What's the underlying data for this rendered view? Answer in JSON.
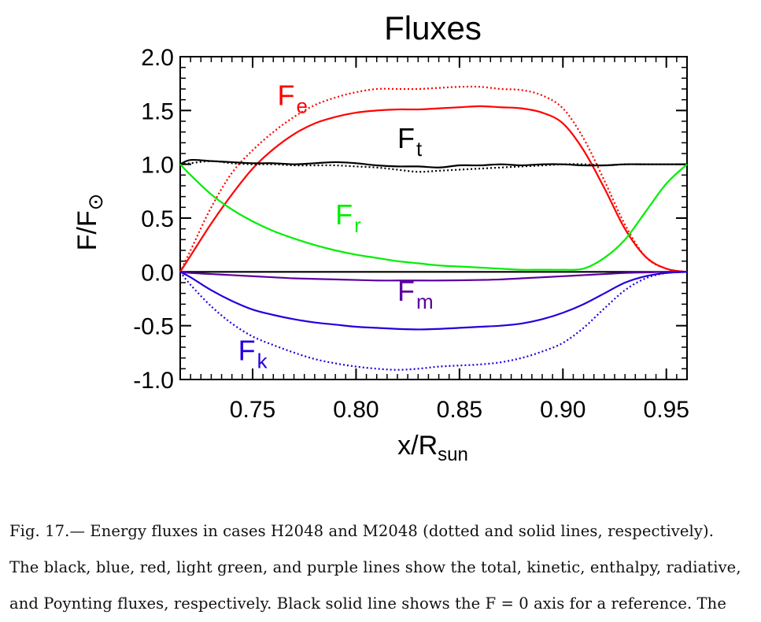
{
  "chart_data": {
    "type": "line",
    "title": "Fluxes",
    "ylabel": {
      "main": "F/F",
      "sub": "⊙"
    },
    "xlabel": {
      "main": "x/R",
      "sub": "sun"
    },
    "xlim": [
      0.715,
      0.96
    ],
    "ylim": [
      -1.0,
      2.0
    ],
    "xticks": [
      0.75,
      0.8,
      0.85,
      0.9,
      0.95
    ],
    "xtick_labels": [
      "0.75",
      "0.80",
      "0.85",
      "0.90",
      "0.95"
    ],
    "yticks": [
      2.0,
      1.5,
      1.0,
      0.5,
      0.0,
      -0.5,
      -1.0
    ],
    "ytick_labels": [
      "2.0",
      "1.5",
      "1.0",
      "0.5",
      "0.0",
      "-0.5",
      "-1.0"
    ],
    "grid": false,
    "series": [
      {
        "color": "#000000",
        "style": "solid",
        "x": [
          0.715,
          0.96
        ],
        "y": [
          0.0,
          0.0
        ]
      },
      {
        "color": "#ff0000",
        "style": "solid",
        "x": [
          0.715,
          0.72,
          0.73,
          0.74,
          0.75,
          0.76,
          0.77,
          0.78,
          0.79,
          0.8,
          0.81,
          0.82,
          0.83,
          0.84,
          0.85,
          0.86,
          0.87,
          0.88,
          0.89,
          0.9,
          0.91,
          0.92,
          0.93,
          0.94,
          0.95,
          0.96
        ],
        "y": [
          0.0,
          0.15,
          0.45,
          0.72,
          0.96,
          1.14,
          1.28,
          1.38,
          1.44,
          1.48,
          1.5,
          1.51,
          1.51,
          1.52,
          1.53,
          1.54,
          1.53,
          1.52,
          1.48,
          1.38,
          1.13,
          0.78,
          0.4,
          0.14,
          0.03,
          0.0
        ]
      },
      {
        "color": "#ff0000",
        "style": "dotted",
        "x": [
          0.715,
          0.72,
          0.73,
          0.74,
          0.75,
          0.76,
          0.77,
          0.78,
          0.79,
          0.8,
          0.81,
          0.82,
          0.83,
          0.84,
          0.85,
          0.86,
          0.87,
          0.88,
          0.89,
          0.9,
          0.91,
          0.92,
          0.93,
          0.94,
          0.95,
          0.96
        ],
        "y": [
          0.0,
          0.2,
          0.6,
          0.92,
          1.13,
          1.3,
          1.44,
          1.55,
          1.62,
          1.67,
          1.7,
          1.7,
          1.7,
          1.71,
          1.72,
          1.72,
          1.7,
          1.69,
          1.64,
          1.52,
          1.24,
          0.85,
          0.44,
          0.14,
          0.03,
          0.0
        ]
      },
      {
        "color": "#000000",
        "style": "solid",
        "x": [
          0.715,
          0.72,
          0.73,
          0.74,
          0.75,
          0.76,
          0.77,
          0.78,
          0.79,
          0.8,
          0.81,
          0.82,
          0.83,
          0.84,
          0.85,
          0.86,
          0.87,
          0.88,
          0.89,
          0.9,
          0.91,
          0.92,
          0.93,
          0.94,
          0.95,
          0.96
        ],
        "y": [
          1.0,
          1.04,
          1.03,
          1.02,
          1.01,
          1.01,
          1.0,
          1.01,
          1.02,
          1.01,
          0.99,
          0.98,
          0.98,
          0.97,
          0.99,
          0.99,
          1.0,
          0.99,
          1.0,
          1.0,
          0.99,
          0.99,
          1.0,
          1.0,
          1.0,
          1.0
        ]
      },
      {
        "color": "#000000",
        "style": "dotted",
        "x": [
          0.715,
          0.72,
          0.73,
          0.74,
          0.75,
          0.76,
          0.77,
          0.78,
          0.79,
          0.8,
          0.81,
          0.82,
          0.83,
          0.84,
          0.85,
          0.86,
          0.87,
          0.88,
          0.89,
          0.9,
          0.91,
          0.92,
          0.93,
          0.94,
          0.95,
          0.96
        ],
        "y": [
          1.0,
          1.01,
          1.03,
          1.01,
          1.0,
          1.0,
          0.99,
          0.99,
          0.99,
          0.98,
          0.97,
          0.95,
          0.93,
          0.94,
          0.95,
          0.96,
          0.97,
          0.98,
          0.99,
          1.0,
          1.0,
          0.99,
          1.0,
          1.0,
          1.0,
          1.0
        ]
      },
      {
        "color": "#00ee00",
        "style": "solid",
        "x": [
          0.715,
          0.72,
          0.73,
          0.74,
          0.75,
          0.76,
          0.77,
          0.78,
          0.79,
          0.8,
          0.81,
          0.82,
          0.83,
          0.84,
          0.85,
          0.86,
          0.87,
          0.88,
          0.89,
          0.9,
          0.91,
          0.92,
          0.93,
          0.94,
          0.95,
          0.96
        ],
        "y": [
          1.0,
          0.9,
          0.72,
          0.58,
          0.47,
          0.38,
          0.31,
          0.25,
          0.2,
          0.16,
          0.13,
          0.1,
          0.08,
          0.06,
          0.05,
          0.04,
          0.03,
          0.02,
          0.02,
          0.02,
          0.03,
          0.13,
          0.3,
          0.56,
          0.82,
          1.0
        ]
      },
      {
        "color": "#5a00a0",
        "style": "solid",
        "x": [
          0.715,
          0.72,
          0.73,
          0.74,
          0.75,
          0.76,
          0.77,
          0.78,
          0.79,
          0.8,
          0.81,
          0.82,
          0.83,
          0.84,
          0.85,
          0.86,
          0.87,
          0.88,
          0.89,
          0.9,
          0.91,
          0.92,
          0.93,
          0.94,
          0.95,
          0.96
        ],
        "y": [
          0.0,
          -0.01,
          -0.02,
          -0.03,
          -0.04,
          -0.05,
          -0.06,
          -0.065,
          -0.07,
          -0.075,
          -0.08,
          -0.08,
          -0.08,
          -0.08,
          -0.078,
          -0.075,
          -0.07,
          -0.06,
          -0.05,
          -0.04,
          -0.03,
          -0.02,
          -0.01,
          -0.005,
          0.0,
          0.0
        ]
      },
      {
        "color": "#2200dd",
        "style": "solid",
        "x": [
          0.715,
          0.72,
          0.73,
          0.74,
          0.75,
          0.76,
          0.77,
          0.78,
          0.79,
          0.8,
          0.81,
          0.82,
          0.83,
          0.84,
          0.85,
          0.86,
          0.87,
          0.88,
          0.89,
          0.9,
          0.91,
          0.92,
          0.93,
          0.94,
          0.95,
          0.96
        ],
        "y": [
          0.0,
          -0.05,
          -0.17,
          -0.27,
          -0.35,
          -0.4,
          -0.44,
          -0.47,
          -0.49,
          -0.51,
          -0.52,
          -0.53,
          -0.535,
          -0.53,
          -0.52,
          -0.51,
          -0.5,
          -0.48,
          -0.44,
          -0.38,
          -0.3,
          -0.2,
          -0.1,
          -0.04,
          -0.01,
          0.0
        ]
      },
      {
        "color": "#2200dd",
        "style": "dotted",
        "x": [
          0.715,
          0.72,
          0.73,
          0.74,
          0.75,
          0.76,
          0.77,
          0.78,
          0.79,
          0.8,
          0.81,
          0.82,
          0.83,
          0.84,
          0.85,
          0.86,
          0.87,
          0.88,
          0.89,
          0.9,
          0.91,
          0.92,
          0.93,
          0.94,
          0.95,
          0.96
        ],
        "y": [
          0.0,
          -0.12,
          -0.32,
          -0.48,
          -0.6,
          -0.68,
          -0.75,
          -0.81,
          -0.85,
          -0.88,
          -0.9,
          -0.91,
          -0.9,
          -0.88,
          -0.87,
          -0.86,
          -0.84,
          -0.8,
          -0.74,
          -0.66,
          -0.52,
          -0.34,
          -0.17,
          -0.06,
          -0.01,
          0.0
        ]
      }
    ],
    "annotations": [
      {
        "main": "F",
        "sub": "e",
        "color": "#ff0000",
        "x": 0.762,
        "y": 1.55
      },
      {
        "main": "F",
        "sub": "t",
        "color": "#000000",
        "x": 0.82,
        "y": 1.15
      },
      {
        "main": "F",
        "sub": "r",
        "color": "#00ee00",
        "x": 0.79,
        "y": 0.44
      },
      {
        "main": "F",
        "sub": "m",
        "color": "#5a00a0",
        "x": 0.82,
        "y": -0.27
      },
      {
        "main": "F",
        "sub": "k",
        "color": "#2200dd",
        "x": 0.743,
        "y": -0.82
      }
    ]
  },
  "caption": {
    "line1": "Fig.  17.—  Energy fluxes in cases H2048 and M2048 (dotted and solid lines, respectively).",
    "line2": "The black, blue, red, light green, and purple lines show the total, kinetic, enthalpy, radiative,",
    "line3": "and Poynting fluxes, respectively. Black solid line shows the F = 0 axis for a reference.  The"
  }
}
